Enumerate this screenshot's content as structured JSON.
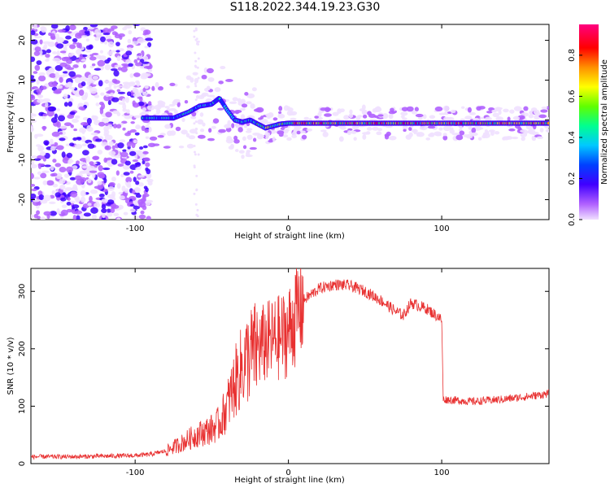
{
  "title": "S118.2022.344.19.23.G30",
  "colors": {
    "snr_line": "#e83030",
    "cmap": [
      "#f0e0ff",
      "#b060ff",
      "#4000ff",
      "#0040ff",
      "#00c8ff",
      "#00ff90",
      "#60ff00",
      "#ffff00",
      "#ff9000",
      "#ff0000",
      "#ff0080"
    ]
  },
  "chart_data": [
    {
      "type": "heatmap",
      "xlabel": "Height of straight line (km)",
      "ylabel": "Frequency (Hz)",
      "xlim": [
        -168,
        170
      ],
      "ylim": [
        -25,
        24
      ],
      "xticks": [
        -100,
        0,
        100
      ],
      "yticks": [
        -20,
        -10,
        0,
        10,
        20
      ],
      "colorbar": {
        "label": "Normalized spectral amplitude",
        "range": [
          0,
          0.95
        ],
        "ticks": [
          "0.0",
          "0.2",
          "0.4",
          "0.6",
          "0.8"
        ]
      },
      "ridge_line": {
        "x": [
          -95,
          -85,
          -75,
          -65,
          -58,
          -50,
          -45,
          -40,
          -35,
          -30,
          -25,
          -20,
          -15,
          -10,
          -5,
          0,
          20,
          60,
          100,
          140,
          170
        ],
        "y": [
          0.5,
          0.5,
          0.5,
          2,
          3.5,
          4,
          5.5,
          2.5,
          0,
          -0.5,
          0,
          -1,
          -2,
          -1.5,
          -1,
          -0.8,
          -0.8,
          -0.8,
          -0.8,
          -0.8,
          -0.8
        ]
      }
    },
    {
      "type": "line",
      "xlabel": "Height of straight line (km)",
      "ylabel": "SNR (10 * v/v)",
      "xlim": [
        -168,
        170
      ],
      "ylim": [
        0,
        340
      ],
      "xticks": [
        -100,
        0,
        100
      ],
      "yticks": [
        0,
        100,
        200,
        300
      ],
      "series": [
        {
          "x": [
            -168,
            -140,
            -120,
            -100,
            -90,
            -80,
            -70,
            -60,
            -50,
            -45,
            -40,
            -35,
            -30,
            -25,
            -20,
            -15,
            -10,
            -5,
            0,
            5,
            10,
            20,
            30,
            40,
            50,
            60,
            70,
            75,
            80,
            90,
            98,
            100,
            101,
            110,
            120,
            130,
            140,
            150,
            160,
            170
          ],
          "y": [
            12,
            12,
            13,
            14,
            16,
            22,
            35,
            50,
            60,
            70,
            100,
            140,
            170,
            190,
            200,
            210,
            215,
            220,
            230,
            260,
            285,
            305,
            312,
            310,
            300,
            285,
            265,
            258,
            280,
            270,
            255,
            250,
            112,
            110,
            108,
            110,
            112,
            115,
            118,
            122
          ]
        }
      ]
    }
  ]
}
